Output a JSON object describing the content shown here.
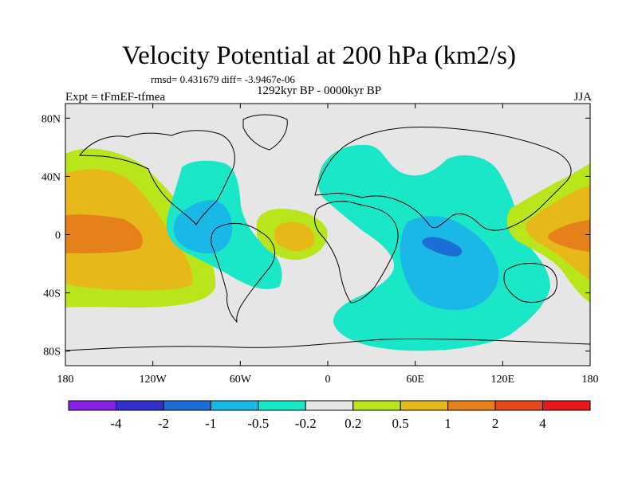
{
  "title": "Velocity Potential at 200 hPa (km2/s)",
  "stats": "rmsd= 0.431679 diff= -3.9467e-06",
  "left_label": "Expt = tFmEF-tfmea",
  "center_label": "1292kyr BP - 0000kyr BP",
  "right_label": "JJA",
  "map": {
    "projection": "cylindrical-equidistant",
    "background_color": "#e6e6e6",
    "lon_range": [
      -180,
      180
    ],
    "lat_range": [
      -90,
      90
    ],
    "lat_ticks": [
      {
        "value": 80,
        "label": "80N"
      },
      {
        "value": 40,
        "label": "40N"
      },
      {
        "value": 0,
        "label": "0"
      },
      {
        "value": -40,
        "label": "40S"
      },
      {
        "value": -80,
        "label": "80S"
      }
    ],
    "lon_ticks": [
      {
        "value": -180,
        "label": "180"
      },
      {
        "value": -120,
        "label": "120W"
      },
      {
        "value": -60,
        "label": "60W"
      },
      {
        "value": 0,
        "label": "0"
      },
      {
        "value": 60,
        "label": "60E"
      },
      {
        "value": 120,
        "label": "120E"
      },
      {
        "value": 180,
        "label": "180"
      }
    ]
  },
  "colorbar": {
    "colors": [
      "#8a22e6",
      "#3030cc",
      "#1a6ed6",
      "#1ab8e6",
      "#1ae6c8",
      "#e6e6e6",
      "#b8e61a",
      "#e6b81a",
      "#e6801a",
      "#e64a1a",
      "#e61a1a"
    ],
    "labels": [
      "-4",
      "-2",
      "-1",
      "-0.5",
      "-0.2",
      "0.2",
      "0.5",
      "1",
      "2",
      "4"
    ]
  }
}
